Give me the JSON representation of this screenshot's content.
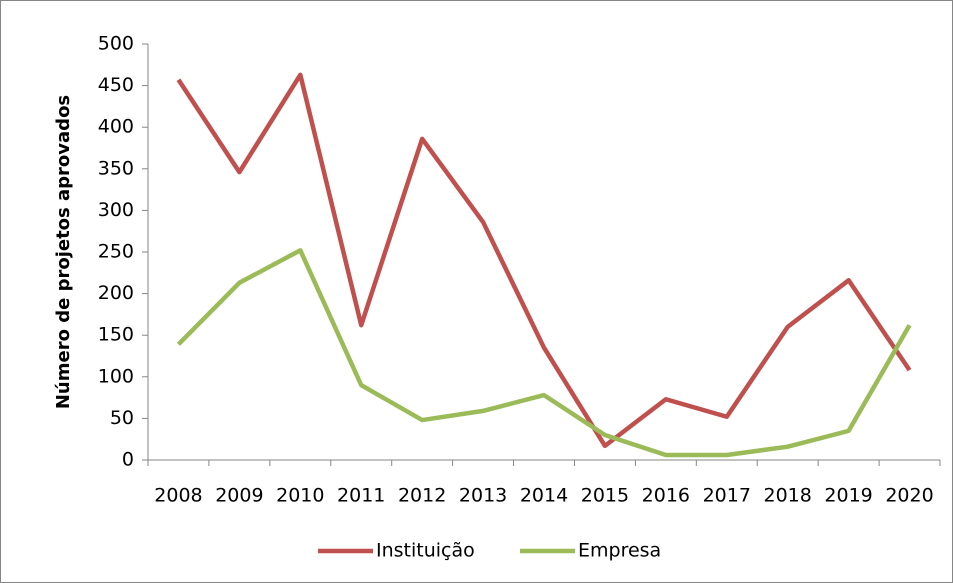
{
  "chart_data": {
    "type": "line",
    "y_label": "Número de projetos aprovados",
    "categories": [
      "2008",
      "2009",
      "2010",
      "2011",
      "2012",
      "2013",
      "2014",
      "2015",
      "2016",
      "2017",
      "2018",
      "2019",
      "2020"
    ],
    "series": [
      {
        "name": "Instituição",
        "color": "#c0504d",
        "values": [
          457,
          346,
          463,
          162,
          386,
          286,
          135,
          17,
          73,
          52,
          160,
          216,
          108
        ]
      },
      {
        "name": "Empresa",
        "color": "#9bbb59",
        "values": [
          139,
          213,
          252,
          90,
          48,
          59,
          78,
          30,
          6,
          6,
          16,
          35,
          162
        ]
      }
    ],
    "ylim": [
      0,
      500
    ],
    "yticks": [
      0,
      50,
      100,
      150,
      200,
      250,
      300,
      350,
      400,
      450,
      500
    ],
    "legend": "bottom"
  }
}
